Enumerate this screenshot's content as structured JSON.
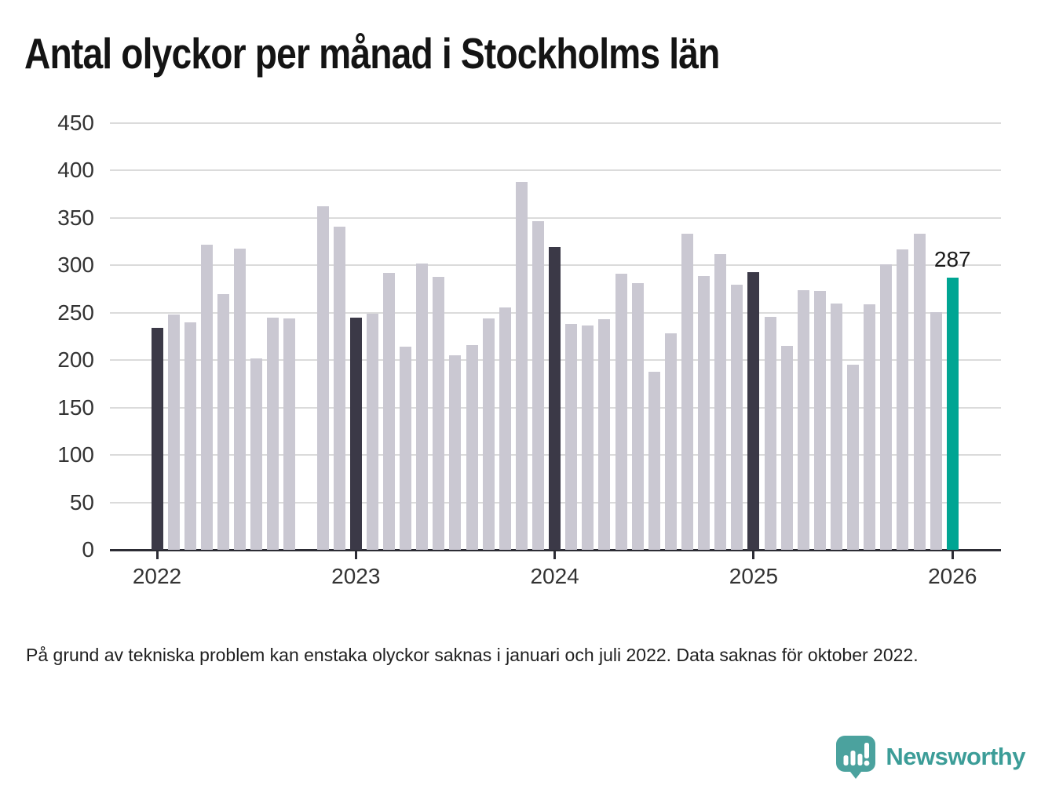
{
  "title": "Antal olyckor per månad i Stockholms län",
  "footnote": "På grund av tekniska problem kan enstaka olyckor saknas i januari och juli 2022. Data saknas för oktober 2022.",
  "branding": {
    "name": "Newsworthy",
    "logo_icon": "speech-bubble-bar-chart",
    "logo_color": "#4ba29e",
    "text_color": "#3c9d98"
  },
  "colors": {
    "bar_default": "#cac8d2",
    "bar_january": "#3b3947",
    "bar_highlight": "#00a593",
    "gridline": "#dbdbdb",
    "axis": "#2c2c34",
    "tick_label": "#333333"
  },
  "chart_data": {
    "type": "bar",
    "title": "Antal olyckor per månad i Stockholms län",
    "xlabel": "",
    "ylabel": "",
    "ylim": [
      0,
      450
    ],
    "grid": true,
    "legend": false,
    "y_ticks": [
      0,
      50,
      100,
      150,
      200,
      250,
      300,
      350,
      400,
      450
    ],
    "x_ticks": [
      "2022",
      "2023",
      "2024",
      "2025",
      "2026"
    ],
    "missing_months": [
      "2022-10"
    ],
    "annotation": {
      "text": "287",
      "month": "2026-01"
    },
    "bars": [
      {
        "m": "2022-01",
        "v": 234,
        "variant": "dark"
      },
      {
        "m": "2022-02",
        "v": 248,
        "variant": "default"
      },
      {
        "m": "2022-03",
        "v": 240,
        "variant": "default"
      },
      {
        "m": "2022-04",
        "v": 322,
        "variant": "default"
      },
      {
        "m": "2022-05",
        "v": 270,
        "variant": "default"
      },
      {
        "m": "2022-06",
        "v": 318,
        "variant": "default"
      },
      {
        "m": "2022-07",
        "v": 202,
        "variant": "default"
      },
      {
        "m": "2022-08",
        "v": 245,
        "variant": "default"
      },
      {
        "m": "2022-09",
        "v": 244,
        "variant": "default"
      },
      {
        "m": "2022-10",
        "v": null,
        "variant": "missing"
      },
      {
        "m": "2022-11",
        "v": 362,
        "variant": "default"
      },
      {
        "m": "2022-12",
        "v": 341,
        "variant": "default"
      },
      {
        "m": "2023-01",
        "v": 245,
        "variant": "dark"
      },
      {
        "m": "2023-02",
        "v": 249,
        "variant": "default"
      },
      {
        "m": "2023-03",
        "v": 292,
        "variant": "default"
      },
      {
        "m": "2023-04",
        "v": 214,
        "variant": "default"
      },
      {
        "m": "2023-05",
        "v": 302,
        "variant": "default"
      },
      {
        "m": "2023-06",
        "v": 288,
        "variant": "default"
      },
      {
        "m": "2023-07",
        "v": 205,
        "variant": "default"
      },
      {
        "m": "2023-08",
        "v": 216,
        "variant": "default"
      },
      {
        "m": "2023-09",
        "v": 244,
        "variant": "default"
      },
      {
        "m": "2023-10",
        "v": 256,
        "variant": "default"
      },
      {
        "m": "2023-11",
        "v": 388,
        "variant": "default"
      },
      {
        "m": "2023-12",
        "v": 347,
        "variant": "default"
      },
      {
        "m": "2024-01",
        "v": 319,
        "variant": "dark"
      },
      {
        "m": "2024-02",
        "v": 238,
        "variant": "default"
      },
      {
        "m": "2024-03",
        "v": 237,
        "variant": "default"
      },
      {
        "m": "2024-04",
        "v": 243,
        "variant": "default"
      },
      {
        "m": "2024-05",
        "v": 291,
        "variant": "default"
      },
      {
        "m": "2024-06",
        "v": 281,
        "variant": "default"
      },
      {
        "m": "2024-07",
        "v": 188,
        "variant": "default"
      },
      {
        "m": "2024-08",
        "v": 228,
        "variant": "default"
      },
      {
        "m": "2024-09",
        "v": 333,
        "variant": "default"
      },
      {
        "m": "2024-10",
        "v": 289,
        "variant": "default"
      },
      {
        "m": "2024-11",
        "v": 312,
        "variant": "default"
      },
      {
        "m": "2024-12",
        "v": 280,
        "variant": "default"
      },
      {
        "m": "2025-01",
        "v": 293,
        "variant": "dark"
      },
      {
        "m": "2025-02",
        "v": 246,
        "variant": "default"
      },
      {
        "m": "2025-03",
        "v": 215,
        "variant": "default"
      },
      {
        "m": "2025-04",
        "v": 274,
        "variant": "default"
      },
      {
        "m": "2025-05",
        "v": 273,
        "variant": "default"
      },
      {
        "m": "2025-06",
        "v": 260,
        "variant": "default"
      },
      {
        "m": "2025-07",
        "v": 195,
        "variant": "default"
      },
      {
        "m": "2025-08",
        "v": 259,
        "variant": "default"
      },
      {
        "m": "2025-09",
        "v": 301,
        "variant": "default"
      },
      {
        "m": "2025-10",
        "v": 317,
        "variant": "default"
      },
      {
        "m": "2025-11",
        "v": 333,
        "variant": "default"
      },
      {
        "m": "2025-12",
        "v": 251,
        "variant": "default"
      },
      {
        "m": "2026-01",
        "v": 287,
        "variant": "highlight"
      }
    ]
  }
}
